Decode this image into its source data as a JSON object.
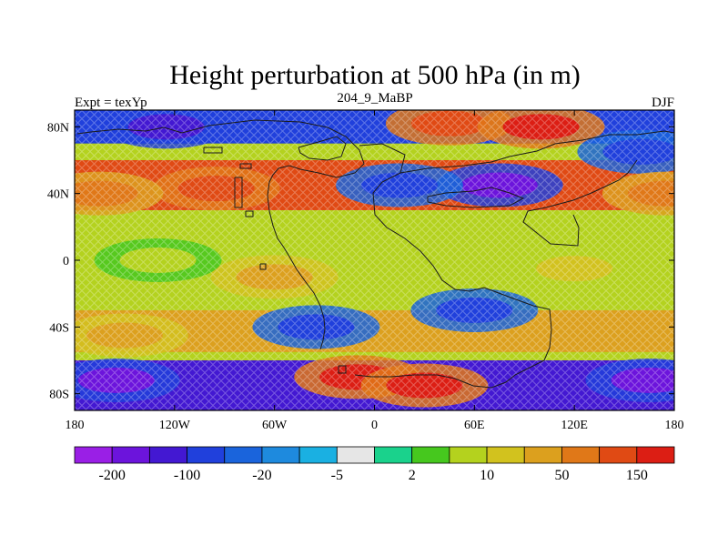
{
  "title": "Height perturbation at 500 hPa (in m)",
  "left_label": "Expt = texYp",
  "center_label": "204_9_MaBP",
  "right_label": "DJF",
  "map": {
    "projection": "cylindrical-equidistant",
    "lon_range": [
      -180,
      180
    ],
    "lat_range": [
      -90,
      90
    ],
    "x_ticks": [
      {
        "lon": -180,
        "label": "180"
      },
      {
        "lon": -120,
        "label": "120W"
      },
      {
        "lon": -60,
        "label": "60W"
      },
      {
        "lon": 0,
        "label": "0"
      },
      {
        "lon": 60,
        "label": "60E"
      },
      {
        "lon": 120,
        "label": "120E"
      },
      {
        "lon": 180,
        "label": "180"
      }
    ],
    "y_ticks": [
      {
        "lat": 80,
        "label": "80N"
      },
      {
        "lat": 40,
        "label": "40N"
      },
      {
        "lat": 0,
        "label": "0"
      },
      {
        "lat": -40,
        "label": "40S"
      },
      {
        "lat": -80,
        "label": "80S"
      }
    ],
    "field_bands": [
      {
        "lat_min": 70,
        "lat_max": 90,
        "value": -100,
        "description": "northern polar low belt"
      },
      {
        "lat_min": 30,
        "lat_max": 60,
        "value": 100,
        "description": "mid-latitude high belt"
      },
      {
        "lat_min": -30,
        "lat_max": 30,
        "value": 5,
        "description": "tropical near-zero belt"
      },
      {
        "lat_min": -55,
        "lat_max": -30,
        "value": 40,
        "description": "southern subtropical high belt"
      },
      {
        "lat_min": -90,
        "lat_max": -60,
        "value": -150,
        "description": "southern polar low belt"
      }
    ],
    "field_features": [
      {
        "lon": -125,
        "lat": 80,
        "value": -120
      },
      {
        "lon": -95,
        "lat": 43,
        "value": 130
      },
      {
        "lon": -165,
        "lat": 40,
        "value": 90
      },
      {
        "lon": 45,
        "lat": 82,
        "value": 140
      },
      {
        "lon": 100,
        "lat": 80,
        "value": 150
      },
      {
        "lon": 75,
        "lat": 45,
        "value": -170
      },
      {
        "lon": 15,
        "lat": 45,
        "value": -70
      },
      {
        "lon": 160,
        "lat": 65,
        "value": -90
      },
      {
        "lon": 175,
        "lat": 40,
        "value": 60
      },
      {
        "lon": 60,
        "lat": -30,
        "value": -90
      },
      {
        "lon": -35,
        "lat": -40,
        "value": -60
      },
      {
        "lon": -150,
        "lat": -45,
        "value": 30
      },
      {
        "lon": -10,
        "lat": -70,
        "value": 170
      },
      {
        "lon": 30,
        "lat": -75,
        "value": 150
      },
      {
        "lon": -155,
        "lat": -72,
        "value": -190
      },
      {
        "lon": 165,
        "lat": -72,
        "value": -170
      },
      {
        "lon": -60,
        "lat": -10,
        "value": 20
      },
      {
        "lon": 120,
        "lat": -5,
        "value": 10
      },
      {
        "lon": -130,
        "lat": 0,
        "value": 5
      }
    ]
  },
  "colorbar": {
    "colors": [
      "#9a1fe6",
      "#6c14dc",
      "#4318d2",
      "#2040dc",
      "#1a64dc",
      "#1e8ade",
      "#1ab0e2",
      "#e6e6e6",
      "#1ad28c",
      "#46c81e",
      "#b4d21e",
      "#d2c21e",
      "#dca01e",
      "#e07818",
      "#e04a14",
      "#dc1e14"
    ],
    "labels": [
      {
        "after_box": 1,
        "text": "-200"
      },
      {
        "after_box": 3,
        "text": "-100"
      },
      {
        "after_box": 5,
        "text": "-20"
      },
      {
        "after_box": 7,
        "text": "-5"
      },
      {
        "after_box": 9,
        "text": "2"
      },
      {
        "after_box": 11,
        "text": "10"
      },
      {
        "after_box": 13,
        "text": "50"
      },
      {
        "after_box": 15,
        "text": "150"
      }
    ],
    "levels": [
      -200,
      -150,
      -100,
      -50,
      -20,
      -10,
      -5,
      -2,
      2,
      5,
      10,
      20,
      50,
      100,
      150,
      200
    ]
  }
}
